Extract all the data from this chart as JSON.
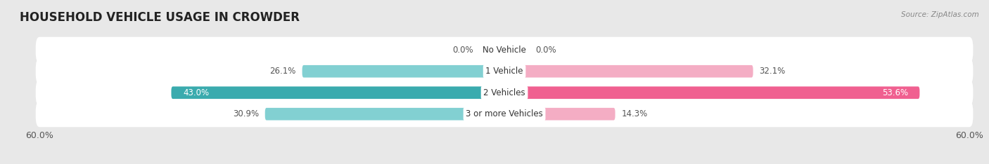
{
  "title": "HOUSEHOLD VEHICLE USAGE IN CROWDER",
  "source": "Source: ZipAtlas.com",
  "categories": [
    "No Vehicle",
    "1 Vehicle",
    "2 Vehicles",
    "3 or more Vehicles"
  ],
  "owner_values": [
    0.0,
    26.1,
    43.0,
    30.9
  ],
  "renter_values": [
    0.0,
    32.1,
    53.6,
    14.3
  ],
  "owner_color_light": "#82d0d2",
  "owner_color_dark": "#3aabae",
  "renter_color_light": "#f4adc4",
  "renter_color_dark": "#f06090",
  "xlim": 60.0,
  "bar_height": 0.58,
  "bg_color": "#e8e8e8",
  "title_fontsize": 12,
  "label_fontsize": 9
}
